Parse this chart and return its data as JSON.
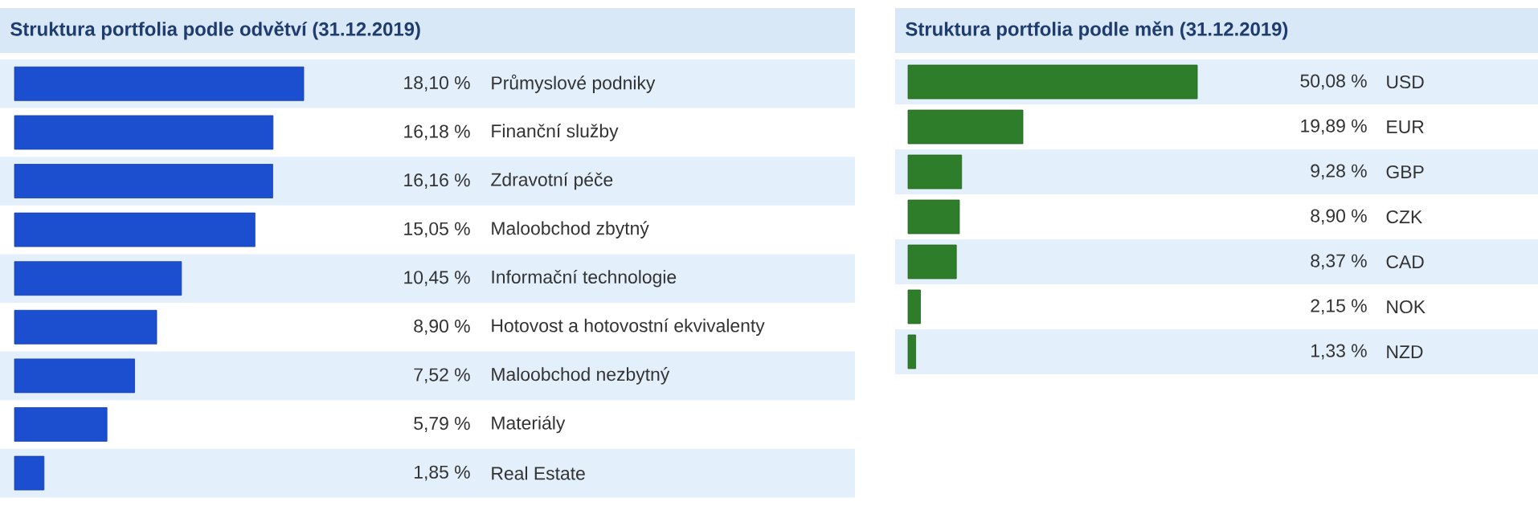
{
  "chart_data": [
    {
      "type": "bar",
      "orientation": "horizontal",
      "title": "Struktura portfolia podle odvětví (31.12.2019)",
      "color": "#1c4fd0",
      "categories": [
        "Průmyslové podniky",
        "Finanční služby",
        "Zdravotní péče",
        "Maloobchod zbytný",
        "Informační technologie",
        "Hotovost a hotovostní ekvivalenty",
        "Maloobchod nezbytný",
        "Materiály",
        "Real Estate"
      ],
      "values": [
        18.1,
        16.18,
        16.16,
        15.05,
        10.45,
        8.9,
        7.52,
        5.79,
        1.85
      ],
      "value_labels": [
        "18,10 %",
        "16,18 %",
        "16,16 %",
        "15,05 %",
        "10,45 %",
        "8,90 %",
        "7,52 %",
        "5,79 %",
        "1,85 %"
      ]
    },
    {
      "type": "bar",
      "orientation": "horizontal",
      "title": "Struktura portfolia podle měn (31.12.2019)",
      "color": "#2e7d2a",
      "categories": [
        "USD",
        "EUR",
        "GBP",
        "CZK",
        "CAD",
        "NOK",
        "NZD"
      ],
      "values": [
        50.08,
        19.89,
        9.28,
        8.9,
        8.37,
        2.15,
        1.33
      ],
      "value_labels": [
        "50,08 %",
        "19,89 %",
        "9,28 %",
        "8,90 %",
        "8,37 %",
        "2,15 %",
        "1,33 %"
      ]
    }
  ]
}
